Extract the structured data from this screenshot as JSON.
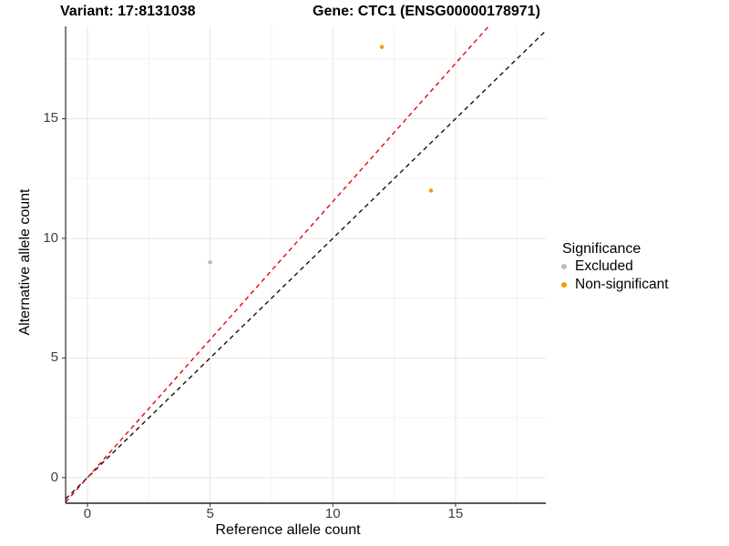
{
  "figure": {
    "title_variant": "Variant: 17:8131038",
    "title_gene": "Gene: CTC1 (ENSG00000178971)"
  },
  "chart_data": {
    "type": "scatter",
    "title": "Variant: 17:8131038    Gene: CTC1 (ENSG00000178971)",
    "xlabel": "Reference allele count",
    "ylabel": "Alternative allele count",
    "xlim": [
      -0.89,
      18.68
    ],
    "ylim": [
      -1.07,
      18.86
    ],
    "xticks": [
      0,
      5,
      10,
      15
    ],
    "yticks": [
      0,
      5,
      10,
      15
    ],
    "xticks_minor": [
      2.5,
      7.5,
      12.5,
      17.5
    ],
    "yticks_minor": [
      2.5,
      7.5,
      12.5,
      17.5
    ],
    "grid": "major+minor",
    "series": [
      {
        "name": "Excluded",
        "color": "#BDBDBD",
        "points": [
          [
            5,
            9
          ]
        ]
      },
      {
        "name": "Non-significant",
        "color": "#F79C00",
        "points": [
          [
            12,
            18
          ],
          [
            14,
            12
          ]
        ]
      }
    ],
    "reference_lines": [
      {
        "name": "identity-line",
        "slope": 1,
        "intercept": 0,
        "color": "#111111",
        "style": "dashed"
      },
      {
        "name": "expected-ratio-line",
        "slope": 1.154,
        "intercept": 0,
        "color": "#EE0000",
        "style": "dashed"
      }
    ],
    "legend": {
      "title": "Significance",
      "position": "right",
      "items": [
        {
          "label": "Excluded",
          "color": "#BDBDBD"
        },
        {
          "label": "Non-significant",
          "color": "#F79C00"
        }
      ]
    },
    "colors": {
      "grid_major": "#E5E5E5",
      "grid_minor": "#F2F2F2",
      "axis_x": "#595959",
      "axis_y": "#000000",
      "tick_mark": "#333333"
    }
  }
}
